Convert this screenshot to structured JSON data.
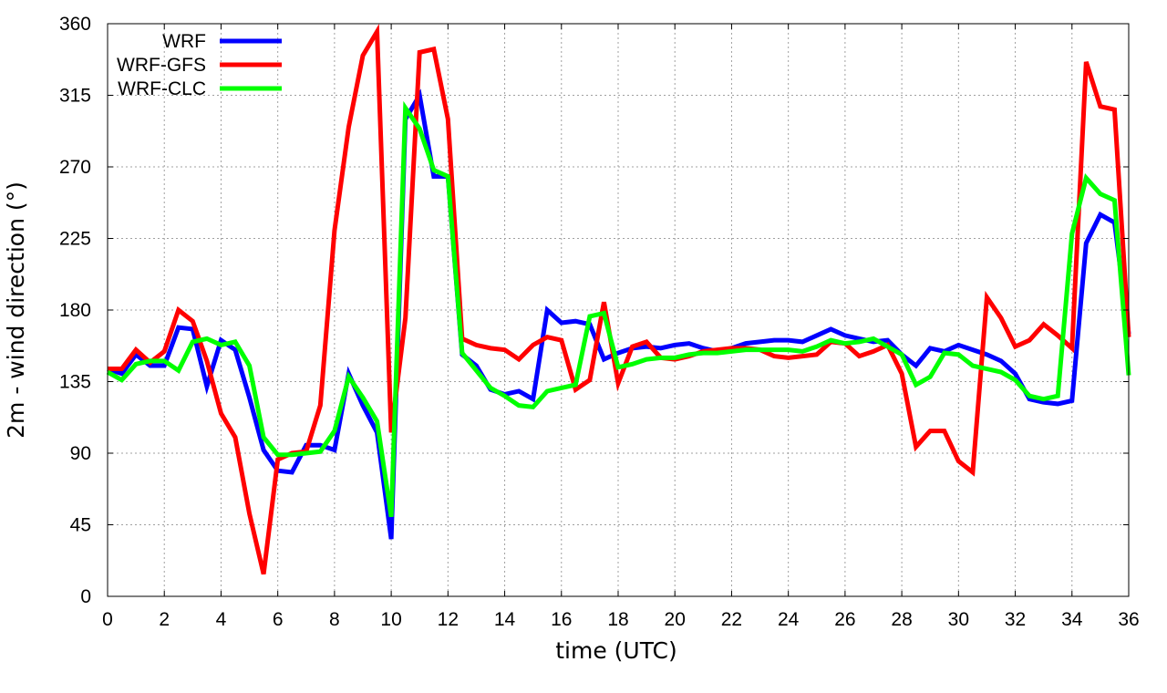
{
  "chart_data": {
    "type": "line",
    "title": "",
    "xlabel": "time (UTC)",
    "ylabel": "2m - wind direction (°)",
    "xlim": [
      0,
      36
    ],
    "ylim": [
      0,
      360
    ],
    "xticks": [
      0,
      2,
      4,
      6,
      8,
      10,
      12,
      14,
      16,
      18,
      20,
      22,
      24,
      26,
      28,
      30,
      32,
      34,
      36
    ],
    "yticks": [
      0,
      45,
      90,
      135,
      180,
      225,
      270,
      315,
      360
    ],
    "xtick_labels": [
      "0",
      "2",
      "4",
      "6",
      "8",
      "10",
      "12",
      "14",
      "16",
      "18",
      "20",
      "22",
      "24",
      "26",
      "28",
      "30",
      "32",
      "34",
      "36"
    ],
    "ytick_labels": [
      "0",
      "45",
      "90",
      "135",
      "180",
      "225",
      "270",
      "315",
      "360"
    ],
    "grid": true,
    "legend_position": "top-left",
    "series": [
      {
        "name": "WRF",
        "color": "#0000ff",
        "x": [
          0,
          0.5,
          1,
          1.5,
          2,
          2.5,
          3,
          3.5,
          4,
          4.5,
          5,
          5.5,
          6,
          6.5,
          7,
          7.5,
          8,
          8.5,
          9,
          9.5,
          10,
          10.5,
          11,
          11.5,
          12,
          12.5,
          13,
          13.5,
          14,
          14.5,
          15,
          15.5,
          16,
          16.5,
          17,
          17.5,
          18,
          18.5,
          19,
          19.5,
          20,
          20.5,
          21,
          21.5,
          22,
          22.5,
          23,
          23.5,
          24,
          24.5,
          25,
          25.5,
          26,
          26.5,
          27,
          27.5,
          28,
          28.5,
          29,
          29.5,
          30,
          30.5,
          31,
          31.5,
          32,
          32.5,
          33,
          33.5,
          34,
          34.5,
          35,
          35.5,
          36
        ],
        "y": [
          143,
          140,
          152,
          145,
          145,
          169,
          168,
          132,
          161,
          155,
          125,
          92,
          79,
          78,
          95,
          95,
          92,
          140,
          120,
          103,
          36,
          300,
          315,
          264,
          264,
          152,
          145,
          130,
          127,
          129,
          124,
          180,
          172,
          173,
          171,
          149,
          153,
          156,
          157,
          156,
          158,
          159,
          156,
          154,
          156,
          159,
          160,
          161,
          161,
          160,
          164,
          168,
          164,
          162,
          160,
          161,
          152,
          145,
          156,
          154,
          158,
          155,
          152,
          148,
          140,
          124,
          122,
          121,
          123,
          222,
          240,
          235,
          165
        ]
      },
      {
        "name": "WRF-GFS",
        "color": "#ff0000",
        "x": [
          0,
          0.5,
          1,
          1.5,
          2,
          2.5,
          3,
          3.5,
          4,
          4.5,
          5,
          5.5,
          6,
          6.5,
          7,
          7.5,
          8,
          8.5,
          9,
          9.5,
          10,
          10.5,
          11,
          11.5,
          12,
          12.5,
          13,
          13.5,
          14,
          14.5,
          15,
          15.5,
          16,
          16.5,
          17,
          17.5,
          18,
          18.5,
          19,
          19.5,
          20,
          20.5,
          21,
          21.5,
          22,
          22.5,
          23,
          23.5,
          24,
          24.5,
          25,
          25.5,
          26,
          26.5,
          27,
          27.5,
          28,
          28.5,
          29,
          29.5,
          30,
          30.5,
          31,
          31.5,
          32,
          32.5,
          33,
          33.5,
          34,
          34.5,
          35,
          35.5,
          36
        ],
        "y": [
          143,
          143,
          155,
          147,
          154,
          180,
          173,
          148,
          115,
          100,
          52,
          14,
          86,
          90,
          91,
          120,
          230,
          295,
          340,
          355,
          103,
          175,
          342,
          344,
          300,
          162,
          158,
          156,
          155,
          149,
          158,
          163,
          161,
          130,
          136,
          185,
          134,
          157,
          160,
          150,
          149,
          151,
          154,
          155,
          156,
          156,
          155,
          151,
          150,
          151,
          152,
          160,
          159,
          151,
          154,
          158,
          140,
          94,
          104,
          104,
          85,
          78,
          188,
          175,
          157,
          161,
          171,
          164,
          156,
          336,
          308,
          306,
          163
        ]
      },
      {
        "name": "WRF-CLC",
        "color": "#00ff00",
        "x": [
          0,
          0.5,
          1,
          1.5,
          2,
          2.5,
          3,
          3.5,
          4,
          4.5,
          5,
          5.5,
          6,
          6.5,
          7,
          7.5,
          8,
          8.5,
          9,
          9.5,
          10,
          10.5,
          11,
          11.5,
          12,
          12.5,
          13,
          13.5,
          14,
          14.5,
          15,
          15.5,
          16,
          16.5,
          17,
          17.5,
          18,
          18.5,
          19,
          19.5,
          20,
          20.5,
          21,
          21.5,
          22,
          22.5,
          23,
          23.5,
          24,
          24.5,
          25,
          25.5,
          26,
          26.5,
          27,
          27.5,
          28,
          28.5,
          29,
          29.5,
          30,
          30.5,
          31,
          31.5,
          32,
          32.5,
          33,
          33.5,
          34,
          34.5,
          35,
          35.5,
          36
        ],
        "y": [
          141,
          136,
          146,
          148,
          148,
          142,
          160,
          162,
          158,
          160,
          145,
          100,
          89,
          89,
          90,
          91,
          104,
          138,
          125,
          110,
          50,
          307,
          294,
          268,
          264,
          153,
          142,
          131,
          126,
          120,
          119,
          129,
          131,
          133,
          176,
          178,
          144,
          146,
          149,
          150,
          150,
          152,
          153,
          153,
          154,
          155,
          155,
          155,
          155,
          154,
          157,
          161,
          159,
          160,
          162,
          157,
          152,
          133,
          138,
          153,
          152,
          145,
          143,
          141,
          136,
          126,
          124,
          126,
          228,
          263,
          253,
          249,
          139
        ]
      }
    ]
  }
}
